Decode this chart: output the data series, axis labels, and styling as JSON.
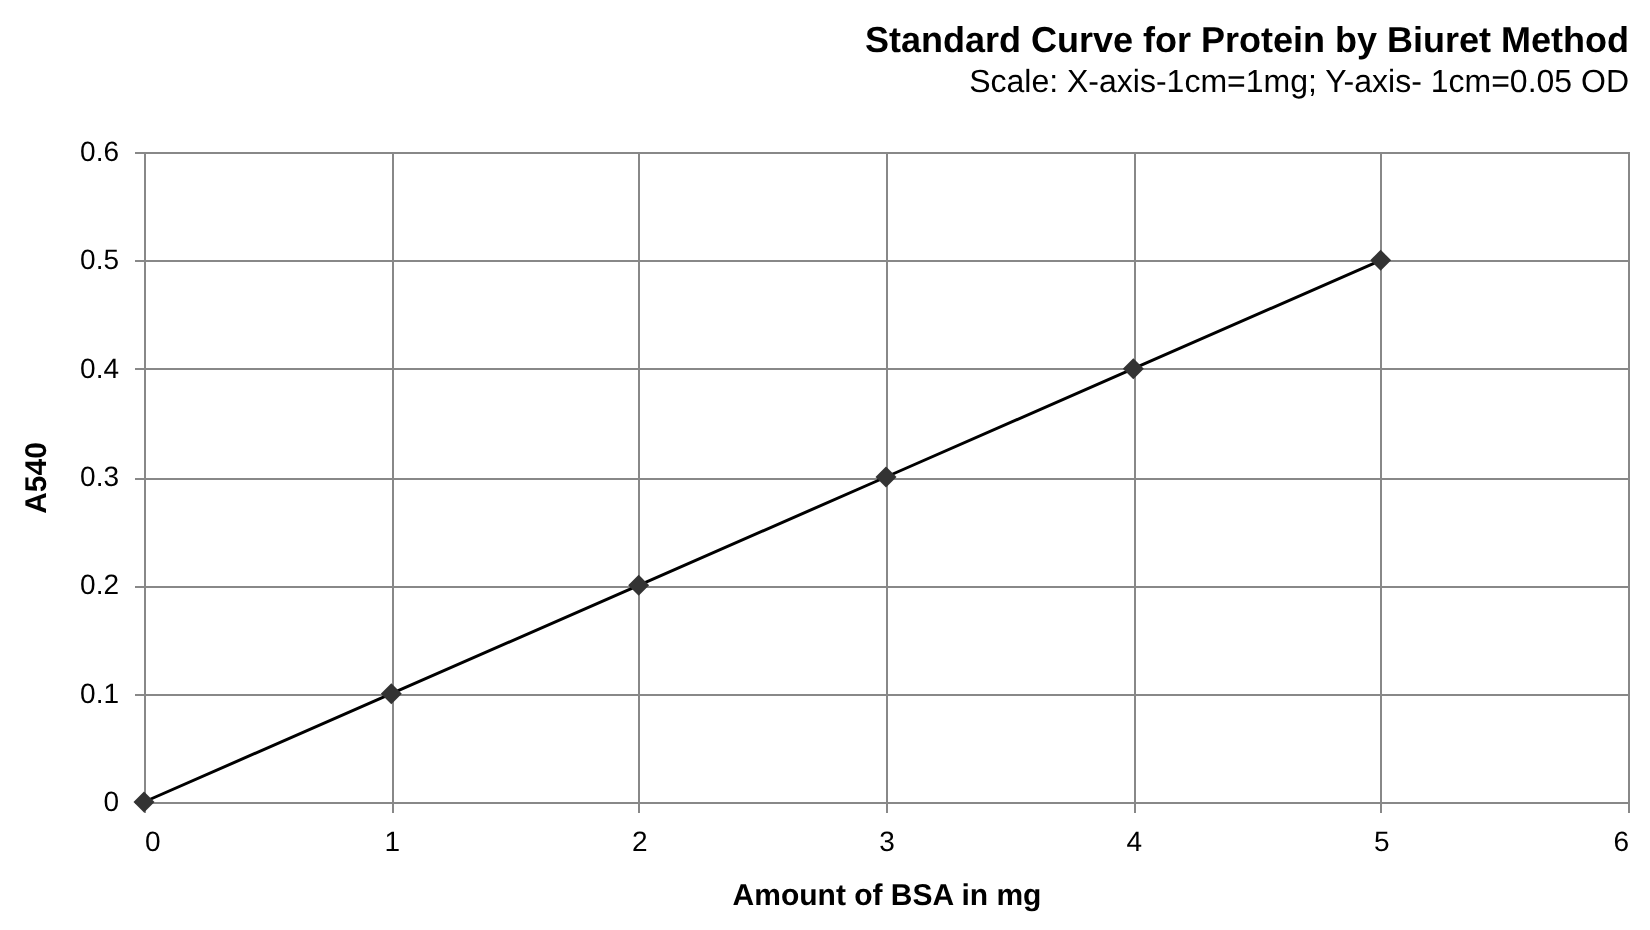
{
  "chart_data": {
    "type": "line",
    "title": "Standard Curve for Protein by Biuret Method",
    "subtitle": "Scale: X-axis-1cm=1mg; Y-axis- 1cm=0.05 OD",
    "xlabel": "Amount of BSA in mg",
    "ylabel": "A540",
    "x": [
      0,
      1,
      2,
      3,
      4,
      5
    ],
    "series": [
      {
        "color": "#000000",
        "values": [
          0,
          0.1,
          0.2,
          0.3,
          0.4,
          0.5
        ]
      }
    ],
    "xlim": [
      0,
      6
    ],
    "xticks": [
      0,
      1,
      2,
      3,
      4,
      5,
      6
    ],
    "ylim": [
      0,
      0.6
    ],
    "yticks": [
      0,
      0.1,
      0.2,
      0.3,
      0.4,
      0.5,
      0.6
    ],
    "grid": true,
    "marker": "diamond",
    "line_style": "solid"
  }
}
